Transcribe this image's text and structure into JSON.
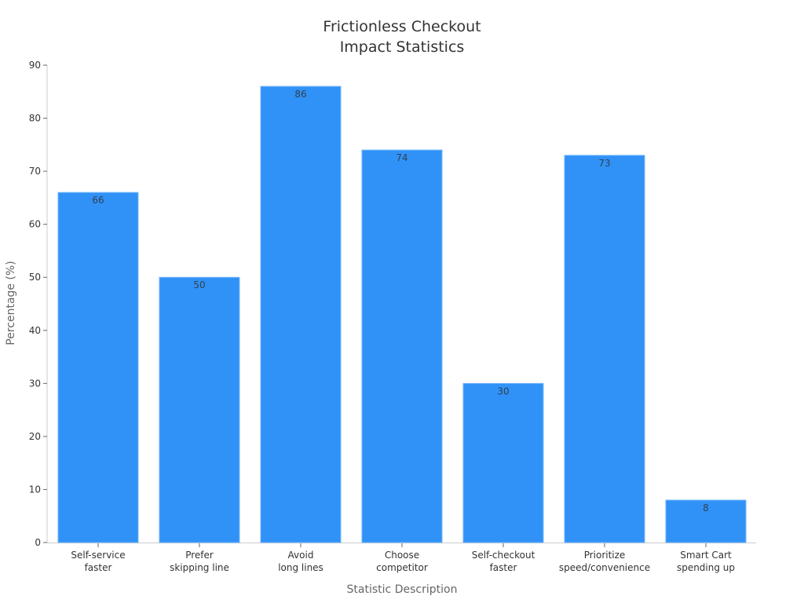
{
  "chart_data": {
    "type": "bar",
    "title": "Frictionless Checkout\nImpact Statistics",
    "title_lines": [
      "Frictionless Checkout",
      "Impact Statistics"
    ],
    "xlabel": "Statistic Description",
    "ylabel": "Percentage (%)",
    "categories": [
      "Self-service faster",
      "Prefer skipping line",
      "Avoid long lines",
      "Choose competitor",
      "Self-checkout faster",
      "Prioritize speed/convenience",
      "Smart Cart spending up"
    ],
    "category_lines": [
      [
        "Self-service",
        "faster"
      ],
      [
        "Prefer",
        "skipping line"
      ],
      [
        "Avoid",
        "long lines"
      ],
      [
        "Choose",
        "competitor"
      ],
      [
        "Self-checkout",
        "faster"
      ],
      [
        "Prioritize",
        "speed/convenience"
      ],
      [
        "Smart Cart",
        "spending up"
      ]
    ],
    "values": [
      66,
      50,
      86,
      74,
      30,
      73,
      8
    ],
    "data_labels": [
      "66",
      "50",
      "86",
      "74",
      "30",
      "73",
      "8"
    ],
    "ylim": [
      0,
      90
    ],
    "yticks": [
      0,
      10,
      20,
      30,
      40,
      50,
      60,
      70,
      80,
      90
    ],
    "grid": false,
    "legend": null,
    "bar_color": "#3092f7"
  }
}
